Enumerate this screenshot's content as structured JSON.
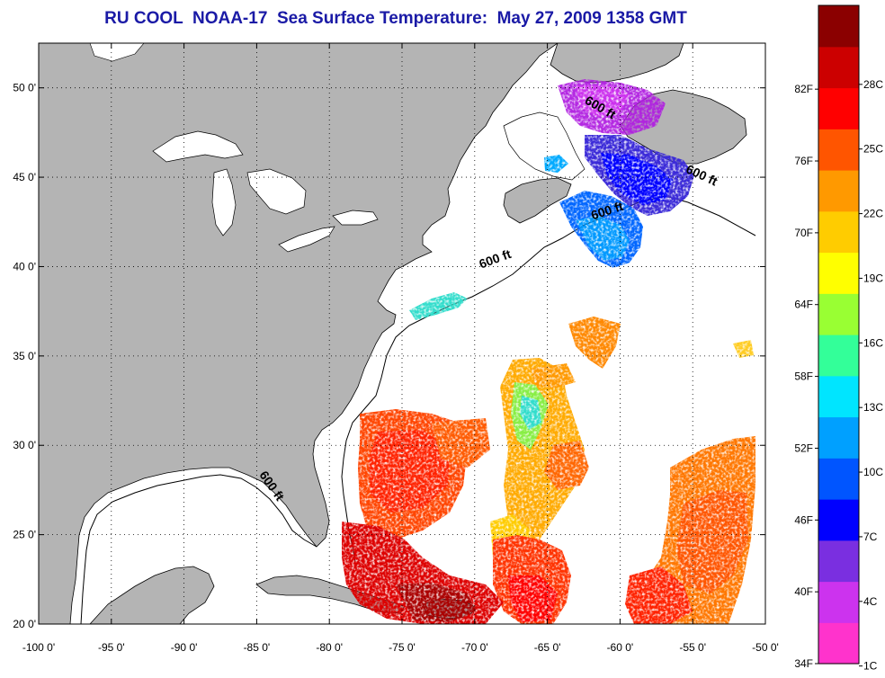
{
  "title": "RU COOL  NOAA-17  Sea Surface Temperature:  May 27, 2009 1358 GMT",
  "map": {
    "lon_range": [
      -100,
      -50
    ],
    "lat_range": [
      20,
      52.5
    ],
    "lon_ticks": [
      {
        "value": -100,
        "label": "-100 0'"
      },
      {
        "value": -95,
        "label": "-95 0'"
      },
      {
        "value": -90,
        "label": "-90 0'"
      },
      {
        "value": -85,
        "label": "-85 0'"
      },
      {
        "value": -80,
        "label": "-80 0'"
      },
      {
        "value": -75,
        "label": "-75 0'"
      },
      {
        "value": -70,
        "label": "-70 0'"
      },
      {
        "value": -65,
        "label": "-65 0'"
      },
      {
        "value": -60,
        "label": "-60 0'"
      },
      {
        "value": -55,
        "label": "-55 0'"
      },
      {
        "value": -50,
        "label": "-50 0'"
      }
    ],
    "lat_ticks": [
      {
        "value": 20,
        "label": "20 0'"
      },
      {
        "value": 25,
        "label": "25 0'"
      },
      {
        "value": 30,
        "label": "30 0'"
      },
      {
        "value": 35,
        "label": "35 0'"
      },
      {
        "value": 40,
        "label": "40 0'"
      },
      {
        "value": 45,
        "label": "45 0'"
      },
      {
        "value": 50,
        "label": "50 0'"
      }
    ],
    "grid": "dotted",
    "land_color": "#b4b4b4",
    "ocean_color": "#ffffff",
    "contour_labels": [
      {
        "text": "600 ft",
        "lon": -61.5,
        "lat": 48.7,
        "angle": 30
      },
      {
        "text": "600 ft",
        "lon": -54.5,
        "lat": 44.9,
        "angle": 25
      },
      {
        "text": "600 ft",
        "lon": -60.8,
        "lat": 42.9,
        "angle": -18
      },
      {
        "text": "600 ft",
        "lon": -68.5,
        "lat": 40.2,
        "angle": -20
      },
      {
        "text": "600 ft",
        "lon": -84.2,
        "lat": 27.6,
        "angle": 55
      }
    ]
  },
  "colorbar": {
    "colors": [
      "#ff33cc",
      "#cc33ee",
      "#7a2fe0",
      "#0000ff",
      "#0055ff",
      "#00a0ff",
      "#00e5ff",
      "#33ff99",
      "#99ff33",
      "#ffff00",
      "#ffcc00",
      "#ff9900",
      "#ff5500",
      "#ff0000",
      "#cc0000",
      "#8b0000"
    ],
    "fahrenheit_labels": [
      {
        "value": 34,
        "label": "34F"
      },
      {
        "value": 40,
        "label": "40F"
      },
      {
        "value": 46,
        "label": "46F"
      },
      {
        "value": 52,
        "label": "52F"
      },
      {
        "value": 58,
        "label": "58F"
      },
      {
        "value": 64,
        "label": "64F"
      },
      {
        "value": 70,
        "label": "70F"
      },
      {
        "value": 76,
        "label": "76F"
      },
      {
        "value": 82,
        "label": "82F"
      }
    ],
    "celsius_labels": [
      {
        "value": 1,
        "label": "1C"
      },
      {
        "value": 4,
        "label": "4C"
      },
      {
        "value": 7,
        "label": "7C"
      },
      {
        "value": 10,
        "label": "10C"
      },
      {
        "value": 13,
        "label": "13C"
      },
      {
        "value": 16,
        "label": "16C"
      },
      {
        "value": 19,
        "label": "19C"
      },
      {
        "value": 22,
        "label": "22C"
      },
      {
        "value": 25,
        "label": "25C"
      },
      {
        "value": 28,
        "label": "28C"
      }
    ]
  }
}
